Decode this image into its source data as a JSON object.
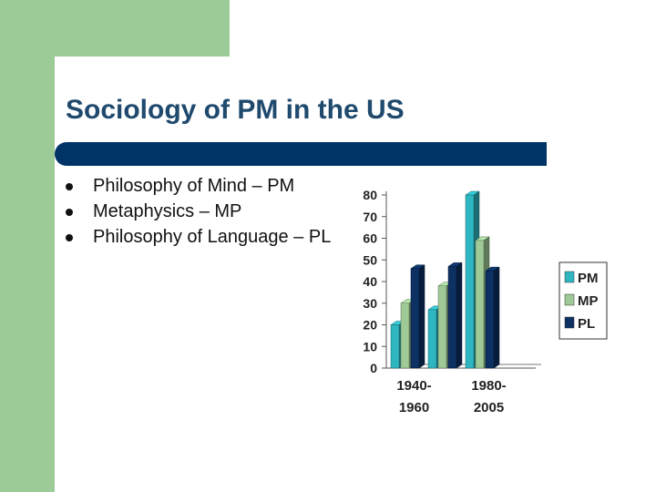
{
  "slide": {
    "title": "Sociology of PM in the US",
    "bullets": [
      "Philosophy of Mind – PM",
      "Metaphysics – MP",
      "Philosophy of Language – PL"
    ]
  },
  "colors": {
    "background_accent": "#9dcb98",
    "title_bar": "#003366",
    "title_text": "#1f4a6e"
  },
  "chart_data": {
    "type": "bar",
    "categories": [
      "1940-1960",
      "",
      "1980-2005",
      ""
    ],
    "category_label_lines": [
      [
        "1940-",
        "1960"
      ],
      [],
      [
        "1980-",
        "2005"
      ],
      []
    ],
    "series": [
      {
        "name": "PM",
        "values": [
          20,
          27,
          80,
          0
        ],
        "color": "#2eb6c1"
      },
      {
        "name": "MP",
        "values": [
          30,
          38,
          59,
          0
        ],
        "color": "#9fc996"
      },
      {
        "name": "PL",
        "values": [
          46,
          47,
          45,
          0
        ],
        "color": "#0d3163"
      }
    ],
    "ylim": [
      0,
      80
    ],
    "yticks": [
      "0",
      "10",
      "20",
      "30",
      "40",
      "50",
      "60",
      "70",
      "80"
    ],
    "legend": "right",
    "grid": false,
    "style": "3d-bar"
  }
}
